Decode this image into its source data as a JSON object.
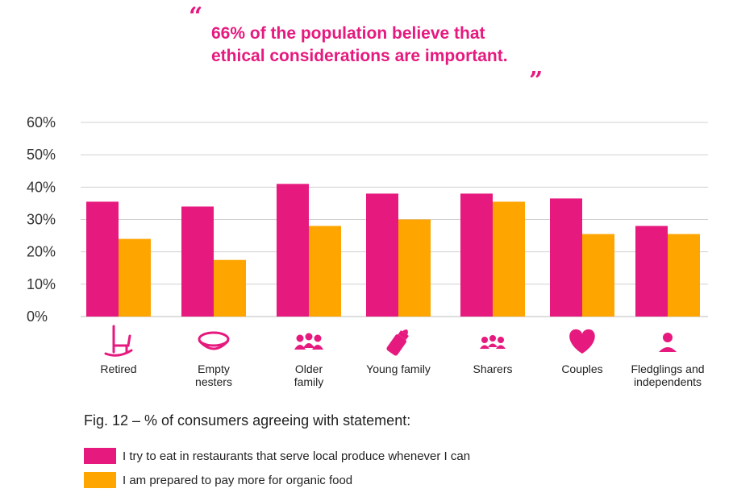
{
  "quote": {
    "open_mark": "“",
    "text": "66% of the population believe that\nethical considerations are important.",
    "close_mark": "”"
  },
  "colors": {
    "local": "#e6197e",
    "organic": "#ffa500",
    "grid": "#d0d0d0",
    "text": "#222222"
  },
  "chart_data": {
    "type": "bar",
    "categories": [
      "Retired",
      "Empty\nnesters",
      "Older\nfamily",
      "Young family",
      "Sharers",
      "Couples",
      "Fledglings and\nindependents"
    ],
    "category_icons": [
      "rocking-chair-icon",
      "empty-bowl-icon",
      "family-group-icon",
      "baby-bottle-icon",
      "sharers-group-icon",
      "heart-icon",
      "single-person-icon"
    ],
    "series": [
      {
        "name": "I try to eat in restaurants that serve local produce whenever I can",
        "color": "#e6197e",
        "values": [
          35.5,
          34,
          41,
          38,
          38,
          36.5,
          28
        ]
      },
      {
        "name": "I am prepared to pay more for organic food",
        "color": "#ffa500",
        "values": [
          24,
          17.5,
          28,
          30,
          35.5,
          25.5,
          25.5
        ]
      }
    ],
    "yticks": [
      "0%",
      "10%",
      "20%",
      "30%",
      "40%",
      "50%",
      "60%"
    ],
    "ylim": [
      0,
      60
    ],
    "grid": true
  },
  "figure": {
    "title": "Fig. 12 – % of consumers agreeing with statement:"
  },
  "legend": [
    {
      "label": "I try to eat in restaurants that serve local produce whenever I can",
      "color": "#e6197e"
    },
    {
      "label": "I am prepared to pay more for organic food",
      "color": "#ffa500"
    }
  ]
}
